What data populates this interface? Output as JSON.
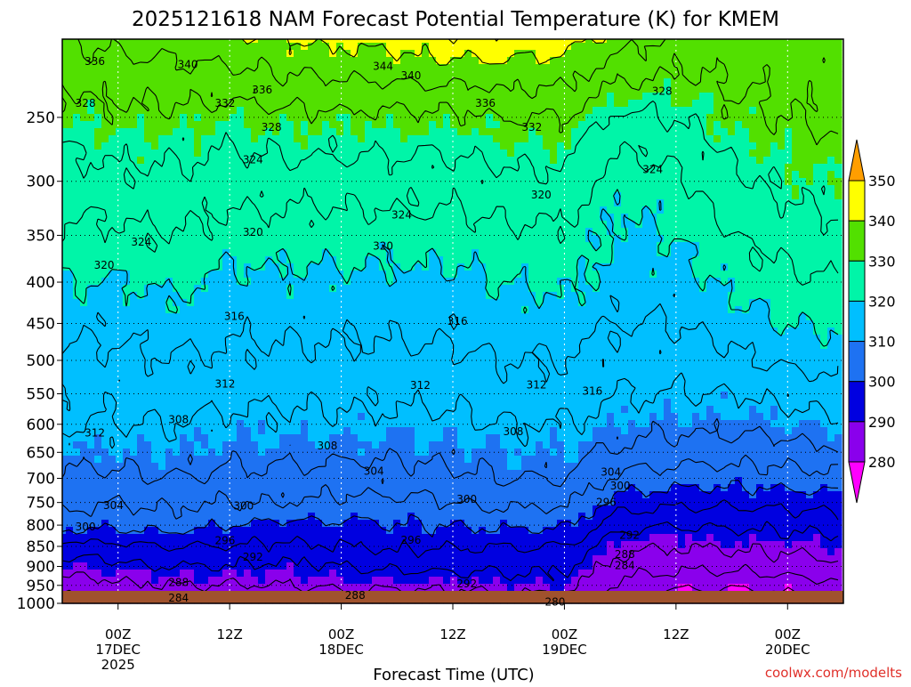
{
  "chart_data": {
    "type": "heatmap",
    "title": "2025121618 NAM Forecast Potential Temperature (K) for KMEM",
    "xlabel": "Forecast Time (UTC)",
    "ylabel": "",
    "x_ticks": [
      {
        "lines": [
          "00Z",
          "17DEC",
          "2025"
        ],
        "hour": 6
      },
      {
        "lines": [
          "12Z"
        ],
        "hour": 18
      },
      {
        "lines": [
          "00Z",
          "18DEC"
        ],
        "hour": 30
      },
      {
        "lines": [
          "12Z"
        ],
        "hour": 42
      },
      {
        "lines": [
          "00Z",
          "19DEC"
        ],
        "hour": 54
      },
      {
        "lines": [
          "12Z"
        ],
        "hour": 66
      },
      {
        "lines": [
          "00Z",
          "20DEC"
        ],
        "hour": 78
      }
    ],
    "xlim_hours": [
      0,
      84
    ],
    "y_scale": "log",
    "y_ticks": [
      "250",
      "300",
      "350",
      "400",
      "450",
      "500",
      "550",
      "600",
      "650",
      "700",
      "750",
      "800",
      "850",
      "900",
      "950",
      "1000"
    ],
    "ylim": [
      1000,
      200
    ],
    "colorbar": {
      "labels": [
        "350",
        "340",
        "330",
        "320",
        "310",
        "300",
        "290",
        "280"
      ],
      "bands": [
        {
          "min": 270,
          "max": 280,
          "color": "#ff00ff"
        },
        {
          "min": 280,
          "max": 290,
          "color": "#8a00ec"
        },
        {
          "min": 290,
          "max": 300,
          "color": "#0000e0"
        },
        {
          "min": 300,
          "max": 310,
          "color": "#1e72f2"
        },
        {
          "min": 310,
          "max": 320,
          "color": "#00bfff"
        },
        {
          "min": 320,
          "max": 330,
          "color": "#00f5a8"
        },
        {
          "min": 330,
          "max": 340,
          "color": "#52e000"
        },
        {
          "min": 340,
          "max": 350,
          "color": "#ffff00"
        },
        {
          "min": 350,
          "max": 360,
          "color": "#ff9e00"
        }
      ]
    },
    "contour_interval": 4,
    "surface_color": "#a0522d",
    "levels": [
      1000,
      950,
      900,
      850,
      800,
      750,
      700,
      650,
      600,
      550,
      500,
      450,
      400,
      350,
      300,
      250,
      200
    ],
    "series": [
      {
        "hour": 0,
        "theta": [
          282,
          286,
          290,
          294,
          302,
          305,
          307,
          310,
          312,
          313,
          315,
          317,
          320,
          323,
          326,
          330,
          336
        ]
      },
      {
        "hour": 6,
        "theta": [
          283,
          287,
          291,
          295,
          301,
          304,
          307,
          310,
          312,
          313,
          315,
          317,
          320,
          323,
          327,
          331,
          337
        ]
      },
      {
        "hour": 12,
        "theta": [
          284,
          288,
          292,
          296,
          302,
          305,
          308,
          310,
          312,
          314,
          316,
          318,
          321,
          324,
          327,
          331,
          338
        ]
      },
      {
        "hour": 18,
        "theta": [
          284,
          288,
          292,
          296,
          300,
          304,
          307,
          309,
          311,
          313,
          315,
          317,
          319,
          322,
          326,
          330,
          339
        ]
      },
      {
        "hour": 24,
        "theta": [
          284,
          288,
          291,
          295,
          299,
          304,
          307,
          309,
          311,
          313,
          315,
          317,
          319,
          322,
          326,
          331,
          340
        ]
      },
      {
        "hour": 30,
        "theta": [
          285,
          289,
          292,
          296,
          299,
          303,
          306,
          309,
          311,
          313,
          315,
          317,
          319,
          322,
          326,
          331,
          341
        ]
      },
      {
        "hour": 36,
        "theta": [
          285,
          289,
          293,
          297,
          300,
          303,
          306,
          309,
          311,
          313,
          315,
          317,
          319,
          322,
          326,
          331,
          342
        ]
      },
      {
        "hour": 42,
        "theta": [
          285,
          289,
          293,
          296,
          300,
          304,
          307,
          309,
          311,
          313,
          315,
          317,
          319,
          322,
          326,
          331,
          343
        ]
      },
      {
        "hour": 48,
        "theta": [
          285,
          290,
          293,
          296,
          301,
          305,
          308,
          310,
          312,
          314,
          316,
          318,
          320,
          323,
          327,
          332,
          343
        ]
      },
      {
        "hour": 54,
        "theta": [
          286,
          290,
          293,
          296,
          301,
          305,
          308,
          310,
          312,
          314,
          316,
          318,
          321,
          323,
          327,
          332,
          342
        ]
      },
      {
        "hour": 60,
        "theta": [
          279,
          283,
          286,
          289,
          293,
          298,
          303,
          307,
          310,
          312,
          314,
          316,
          318,
          319,
          321,
          327,
          338
        ]
      },
      {
        "hour": 66,
        "theta": [
          276,
          281,
          285,
          288,
          292,
          297,
          302,
          306,
          309,
          312,
          314,
          316,
          318,
          320,
          323,
          328,
          335
        ]
      },
      {
        "hour": 72,
        "theta": [
          276,
          281,
          285,
          289,
          293,
          297,
          302,
          306,
          309,
          312,
          315,
          318,
          321,
          324,
          327,
          331,
          334
        ]
      },
      {
        "hour": 78,
        "theta": [
          277,
          282,
          286,
          289,
          293,
          297,
          302,
          306,
          310,
          313,
          317,
          320,
          323,
          326,
          329,
          332,
          334
        ]
      },
      {
        "hour": 84,
        "theta": [
          279,
          283,
          287,
          290,
          294,
          298,
          303,
          307,
          311,
          315,
          318,
          321,
          324,
          327,
          330,
          333,
          334
        ]
      }
    ],
    "contour_labels": [
      {
        "text": "336",
        "hour": 3.5,
        "p": 213
      },
      {
        "text": "340",
        "hour": 13.5,
        "p": 215
      },
      {
        "text": "344",
        "hour": 34.5,
        "p": 216
      },
      {
        "text": "340",
        "hour": 37.5,
        "p": 222
      },
      {
        "text": "336",
        "hour": 21.5,
        "p": 231
      },
      {
        "text": "332",
        "hour": 17.5,
        "p": 240
      },
      {
        "text": "336",
        "hour": 45.5,
        "p": 240
      },
      {
        "text": "332",
        "hour": 50.5,
        "p": 257
      },
      {
        "text": "328",
        "hour": 2.5,
        "p": 240
      },
      {
        "text": "328",
        "hour": 22.5,
        "p": 257
      },
      {
        "text": "328",
        "hour": 64.5,
        "p": 232
      },
      {
        "text": "324",
        "hour": 20.5,
        "p": 282
      },
      {
        "text": "324",
        "hour": 63.5,
        "p": 290
      },
      {
        "text": "324",
        "hour": 36.5,
        "p": 330
      },
      {
        "text": "324",
        "hour": 8.5,
        "p": 357
      },
      {
        "text": "320",
        "hour": 20.5,
        "p": 347
      },
      {
        "text": "320",
        "hour": 34.5,
        "p": 361
      },
      {
        "text": "320",
        "hour": 51.5,
        "p": 312
      },
      {
        "text": "320",
        "hour": 4.5,
        "p": 381
      },
      {
        "text": "316",
        "hour": 18.5,
        "p": 441
      },
      {
        "text": "316",
        "hour": 42.5,
        "p": 447
      },
      {
        "text": "316",
        "hour": 57,
        "p": 546
      },
      {
        "text": "312",
        "hour": 17.5,
        "p": 535
      },
      {
        "text": "312",
        "hour": 38.5,
        "p": 537
      },
      {
        "text": "312",
        "hour": 51,
        "p": 536
      },
      {
        "text": "312",
        "hour": 3.5,
        "p": 615
      },
      {
        "text": "308",
        "hour": 12.5,
        "p": 592
      },
      {
        "text": "308",
        "hour": 28.5,
        "p": 638
      },
      {
        "text": "308",
        "hour": 48.5,
        "p": 613
      },
      {
        "text": "304",
        "hour": 33.5,
        "p": 686
      },
      {
        "text": "304",
        "hour": 59,
        "p": 688
      },
      {
        "text": "304",
        "hour": 5.5,
        "p": 756
      },
      {
        "text": "300",
        "hour": 19.5,
        "p": 757
      },
      {
        "text": "300",
        "hour": 43.5,
        "p": 743
      },
      {
        "text": "300",
        "hour": 60,
        "p": 715
      },
      {
        "text": "300",
        "hour": 2.5,
        "p": 804
      },
      {
        "text": "296",
        "hour": 17.5,
        "p": 836
      },
      {
        "text": "296",
        "hour": 37.5,
        "p": 835
      },
      {
        "text": "296",
        "hour": 58.5,
        "p": 750
      },
      {
        "text": "292",
        "hour": 20.5,
        "p": 876
      },
      {
        "text": "292",
        "hour": 43.5,
        "p": 946
      },
      {
        "text": "292",
        "hour": 61,
        "p": 823
      },
      {
        "text": "288",
        "hour": 12.5,
        "p": 942
      },
      {
        "text": "288",
        "hour": 31.5,
        "p": 978
      },
      {
        "text": "288",
        "hour": 60.5,
        "p": 870
      },
      {
        "text": "284",
        "hour": 12.5,
        "p": 985
      },
      {
        "text": "284",
        "hour": 60.5,
        "p": 898
      },
      {
        "text": "280",
        "hour": 53,
        "p": 996
      }
    ],
    "credit": "coolwx.com/modelts"
  }
}
